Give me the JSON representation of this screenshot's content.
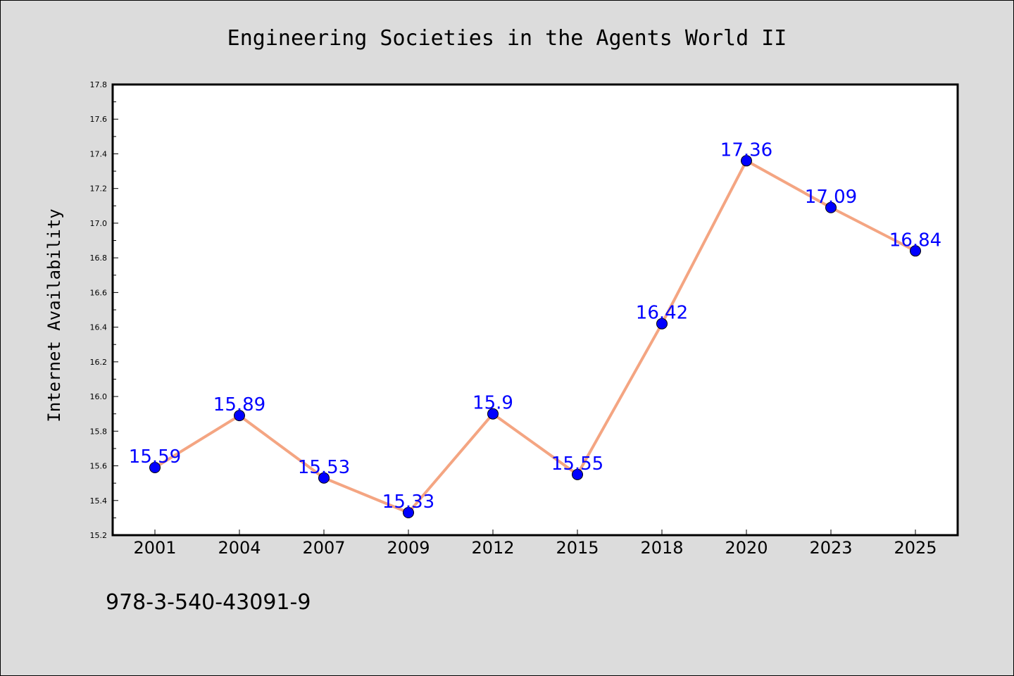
{
  "chart_data": {
    "type": "line",
    "title": "Engineering Societies in the Agents World II",
    "xlabel": "",
    "ylabel": "Internet Availability",
    "categories": [
      "2001",
      "2004",
      "2007",
      "2009",
      "2012",
      "2015",
      "2018",
      "2020",
      "2023",
      "2025"
    ],
    "values": [
      15.59,
      15.89,
      15.53,
      15.33,
      15.9,
      15.55,
      16.42,
      17.36,
      17.09,
      16.84
    ],
    "data_labels": [
      "15.59",
      "15.89",
      "15.53",
      "15.33",
      "15.9",
      "15.55",
      "16.42",
      "17.36",
      "17.09",
      "16.84"
    ],
    "ylim": [
      15.2,
      17.8
    ],
    "yticks": [
      "15.2",
      "15.4",
      "15.6",
      "15.8",
      "16.0",
      "16.2",
      "16.4",
      "16.6",
      "16.8",
      "17.0",
      "17.2",
      "17.4",
      "17.6",
      "17.8"
    ],
    "grid": false,
    "line_color": "#f4a582",
    "marker_color": "#0000ff",
    "label_color": "#0000ff"
  },
  "footer_text": "978-3-540-43091-9"
}
